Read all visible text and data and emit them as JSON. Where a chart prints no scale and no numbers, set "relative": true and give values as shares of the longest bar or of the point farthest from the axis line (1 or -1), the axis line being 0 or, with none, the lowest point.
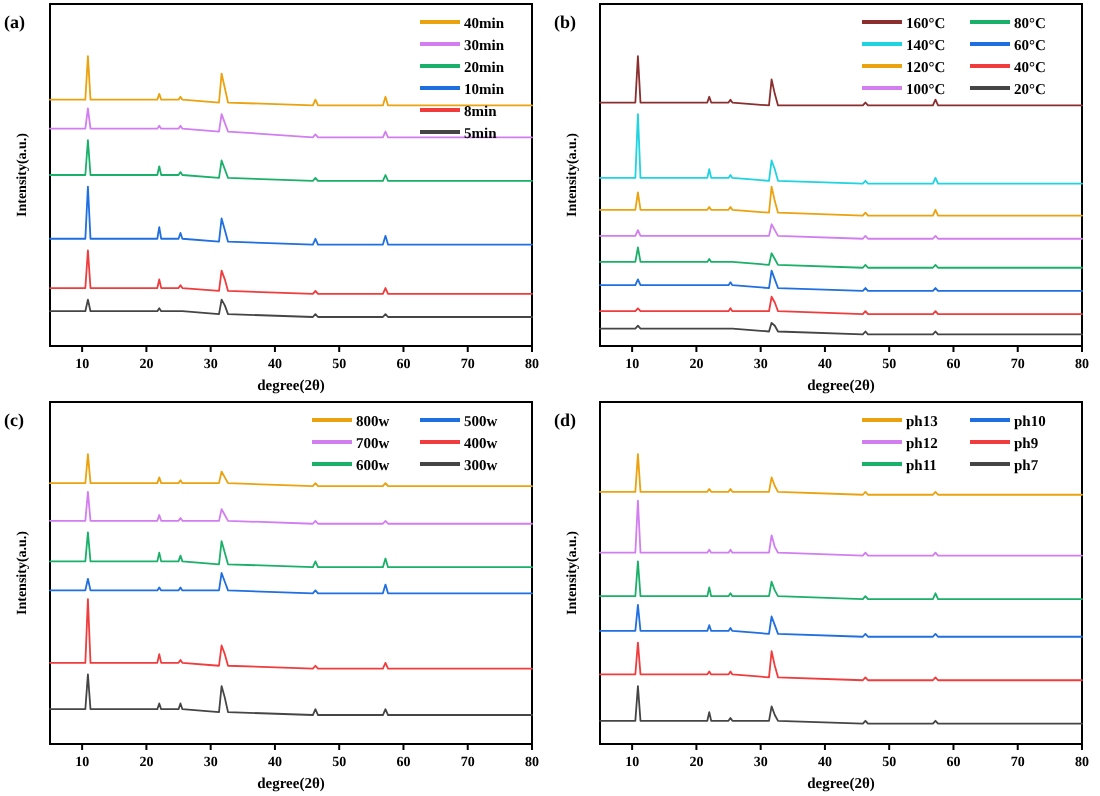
{
  "chart_data": [
    {
      "type": "line",
      "relative": true,
      "title": "(a)",
      "xlabel": "degree(2θ)",
      "ylabel": "Intensity(a.u.)",
      "legend": "top right",
      "xlim": [
        5,
        80
      ],
      "xticks": [
        10,
        20,
        30,
        40,
        50,
        60,
        70,
        80
      ],
      "x": [
        5,
        10.5,
        10.9,
        11.3,
        21.7,
        22,
        22.3,
        25,
        25.3,
        25.6,
        31.3,
        31.7,
        32.2,
        32.7,
        45.9,
        46.3,
        46.7,
        56.8,
        57.2,
        57.6,
        80
      ],
      "series": [
        {
          "name": "40min",
          "color": "#eba20f",
          "values": [
            0.85,
            0.85,
            1.0,
            0.85,
            0.85,
            0.87,
            0.85,
            0.85,
            0.86,
            0.85,
            0.84,
            0.94,
            0.89,
            0.84,
            0.83,
            0.85,
            0.83,
            0.83,
            0.86,
            0.83,
            0.83
          ]
        },
        {
          "name": "30min",
          "color": "#d27ef0",
          "values": [
            0.75,
            0.75,
            0.82,
            0.75,
            0.75,
            0.76,
            0.75,
            0.75,
            0.76,
            0.75,
            0.74,
            0.8,
            0.77,
            0.74,
            0.72,
            0.73,
            0.72,
            0.72,
            0.74,
            0.72,
            0.72
          ]
        },
        {
          "name": "20min",
          "color": "#1bb06a",
          "values": [
            0.59,
            0.59,
            0.71,
            0.59,
            0.59,
            0.62,
            0.59,
            0.59,
            0.6,
            0.59,
            0.58,
            0.64,
            0.61,
            0.58,
            0.57,
            0.58,
            0.57,
            0.57,
            0.59,
            0.57,
            0.57
          ]
        },
        {
          "name": "10min",
          "color": "#1f6fe0",
          "values": [
            0.37,
            0.37,
            0.55,
            0.37,
            0.37,
            0.41,
            0.37,
            0.37,
            0.39,
            0.37,
            0.36,
            0.44,
            0.4,
            0.36,
            0.35,
            0.37,
            0.35,
            0.35,
            0.38,
            0.35,
            0.35
          ]
        },
        {
          "name": "8min",
          "color": "#f03c3c",
          "values": [
            0.2,
            0.2,
            0.33,
            0.2,
            0.2,
            0.23,
            0.2,
            0.2,
            0.21,
            0.2,
            0.19,
            0.26,
            0.23,
            0.19,
            0.18,
            0.19,
            0.18,
            0.18,
            0.2,
            0.18,
            0.18
          ]
        },
        {
          "name": "5min",
          "color": "#454545",
          "values": [
            0.12,
            0.12,
            0.16,
            0.12,
            0.12,
            0.13,
            0.12,
            0.12,
            0.12,
            0.12,
            0.11,
            0.16,
            0.14,
            0.11,
            0.1,
            0.11,
            0.1,
            0.1,
            0.11,
            0.1,
            0.1
          ]
        }
      ]
    },
    {
      "type": "line",
      "relative": true,
      "title": "(b)",
      "xlabel": "degree(2θ)",
      "ylabel": "Intensity(a.u.)",
      "legend": "top right",
      "xlim": [
        5,
        80
      ],
      "xticks": [
        10,
        20,
        30,
        40,
        50,
        60,
        70,
        80
      ],
      "x": [
        5,
        10.5,
        10.9,
        11.3,
        21.7,
        22,
        22.3,
        25,
        25.3,
        25.6,
        31.3,
        31.7,
        32.2,
        32.7,
        45.9,
        46.3,
        46.7,
        56.8,
        57.2,
        57.6,
        80
      ],
      "series": [
        {
          "name": "160°C",
          "color": "#8b2e2e",
          "values": [
            0.84,
            0.84,
            1.0,
            0.84,
            0.84,
            0.86,
            0.84,
            0.84,
            0.85,
            0.84,
            0.83,
            0.92,
            0.87,
            0.83,
            0.83,
            0.84,
            0.83,
            0.83,
            0.85,
            0.83,
            0.83
          ]
        },
        {
          "name": "140°C",
          "color": "#1fd3e0",
          "values": [
            0.58,
            0.58,
            0.8,
            0.58,
            0.58,
            0.61,
            0.58,
            0.58,
            0.59,
            0.58,
            0.57,
            0.64,
            0.61,
            0.57,
            0.56,
            0.57,
            0.56,
            0.56,
            0.58,
            0.56,
            0.56
          ]
        },
        {
          "name": "120°C",
          "color": "#eba20f",
          "values": [
            0.47,
            0.47,
            0.53,
            0.47,
            0.47,
            0.48,
            0.47,
            0.47,
            0.48,
            0.47,
            0.46,
            0.55,
            0.5,
            0.46,
            0.45,
            0.46,
            0.45,
            0.45,
            0.47,
            0.45,
            0.45
          ]
        },
        {
          "name": "100°C",
          "color": "#d27ef0",
          "values": [
            0.38,
            0.38,
            0.4,
            0.38,
            0.38,
            0.38,
            0.38,
            0.38,
            0.38,
            0.38,
            0.38,
            0.42,
            0.4,
            0.38,
            0.37,
            0.38,
            0.37,
            0.37,
            0.38,
            0.37,
            0.37
          ]
        },
        {
          "name": "80°C",
          "color": "#1bb06a",
          "values": [
            0.29,
            0.29,
            0.34,
            0.29,
            0.29,
            0.3,
            0.29,
            0.29,
            0.29,
            0.29,
            0.28,
            0.32,
            0.3,
            0.28,
            0.27,
            0.28,
            0.27,
            0.27,
            0.28,
            0.27,
            0.27
          ]
        },
        {
          "name": "60°C",
          "color": "#1f6fe0",
          "values": [
            0.21,
            0.21,
            0.23,
            0.21,
            0.21,
            0.21,
            0.21,
            0.21,
            0.22,
            0.21,
            0.2,
            0.26,
            0.23,
            0.2,
            0.19,
            0.2,
            0.19,
            0.19,
            0.2,
            0.19,
            0.19
          ]
        },
        {
          "name": "40°C",
          "color": "#f03c3c",
          "values": [
            0.12,
            0.12,
            0.13,
            0.12,
            0.12,
            0.12,
            0.12,
            0.12,
            0.13,
            0.12,
            0.12,
            0.17,
            0.15,
            0.12,
            0.11,
            0.12,
            0.11,
            0.11,
            0.12,
            0.11,
            0.11
          ]
        },
        {
          "name": "20°C",
          "color": "#454545",
          "values": [
            0.06,
            0.06,
            0.07,
            0.06,
            0.06,
            0.06,
            0.06,
            0.06,
            0.06,
            0.06,
            0.05,
            0.08,
            0.07,
            0.05,
            0.04,
            0.05,
            0.04,
            0.04,
            0.05,
            0.04,
            0.04
          ]
        }
      ]
    },
    {
      "type": "line",
      "relative": true,
      "title": "(c)",
      "xlabel": "degree(2θ)",
      "ylabel": "Intensity(a.u.)",
      "legend": "top right",
      "xlim": [
        5,
        80
      ],
      "xticks": [
        10,
        20,
        30,
        40,
        50,
        60,
        70,
        80
      ],
      "x": [
        5,
        10.5,
        10.9,
        11.3,
        21.7,
        22,
        22.3,
        25,
        25.3,
        25.6,
        31.3,
        31.7,
        32.2,
        32.7,
        45.9,
        46.3,
        46.7,
        56.8,
        57.2,
        57.6,
        80
      ],
      "series": [
        {
          "name": "800w",
          "color": "#eba20f",
          "values": [
            0.9,
            0.9,
            1.0,
            0.9,
            0.9,
            0.92,
            0.9,
            0.9,
            0.91,
            0.9,
            0.9,
            0.94,
            0.92,
            0.9,
            0.89,
            0.9,
            0.89,
            0.89,
            0.9,
            0.89,
            0.89
          ]
        },
        {
          "name": "700w",
          "color": "#d27ef0",
          "values": [
            0.77,
            0.77,
            0.87,
            0.77,
            0.77,
            0.79,
            0.77,
            0.77,
            0.78,
            0.77,
            0.77,
            0.81,
            0.79,
            0.77,
            0.76,
            0.77,
            0.76,
            0.76,
            0.77,
            0.76,
            0.76
          ]
        },
        {
          "name": "600w",
          "color": "#1bb06a",
          "values": [
            0.63,
            0.63,
            0.73,
            0.63,
            0.63,
            0.66,
            0.63,
            0.63,
            0.65,
            0.63,
            0.62,
            0.7,
            0.66,
            0.62,
            0.61,
            0.63,
            0.61,
            0.61,
            0.64,
            0.61,
            0.61
          ]
        },
        {
          "name": "500w",
          "color": "#1f6fe0",
          "values": [
            0.53,
            0.53,
            0.57,
            0.53,
            0.53,
            0.54,
            0.53,
            0.53,
            0.54,
            0.53,
            0.53,
            0.59,
            0.56,
            0.53,
            0.52,
            0.53,
            0.52,
            0.52,
            0.55,
            0.52,
            0.52
          ]
        },
        {
          "name": "400w",
          "color": "#f03c3c",
          "values": [
            0.28,
            0.28,
            0.5,
            0.28,
            0.28,
            0.31,
            0.28,
            0.28,
            0.29,
            0.28,
            0.27,
            0.34,
            0.31,
            0.27,
            0.26,
            0.27,
            0.26,
            0.26,
            0.28,
            0.26,
            0.26
          ]
        },
        {
          "name": "300w",
          "color": "#454545",
          "values": [
            0.12,
            0.12,
            0.24,
            0.12,
            0.12,
            0.14,
            0.12,
            0.12,
            0.14,
            0.12,
            0.11,
            0.2,
            0.16,
            0.11,
            0.1,
            0.12,
            0.1,
            0.1,
            0.12,
            0.1,
            0.1
          ]
        }
      ]
    },
    {
      "type": "line",
      "relative": true,
      "title": "(d)",
      "xlabel": "degree(2θ)",
      "ylabel": "Intensity(a.u.)",
      "legend": "top right",
      "xlim": [
        5,
        80
      ],
      "xticks": [
        10,
        20,
        30,
        40,
        50,
        60,
        70,
        80
      ],
      "x": [
        5,
        10.5,
        10.9,
        11.3,
        21.7,
        22,
        22.3,
        25,
        25.3,
        25.6,
        31.3,
        31.7,
        32.2,
        32.7,
        45.9,
        46.3,
        46.7,
        56.8,
        57.2,
        57.6,
        80
      ],
      "series": [
        {
          "name": "ph13",
          "color": "#eba20f",
          "values": [
            0.87,
            0.87,
            1.0,
            0.87,
            0.87,
            0.88,
            0.87,
            0.87,
            0.88,
            0.87,
            0.87,
            0.92,
            0.89,
            0.87,
            0.86,
            0.87,
            0.86,
            0.86,
            0.87,
            0.86,
            0.86
          ]
        },
        {
          "name": "ph12",
          "color": "#d27ef0",
          "values": [
            0.66,
            0.66,
            0.84,
            0.66,
            0.66,
            0.67,
            0.66,
            0.66,
            0.67,
            0.66,
            0.66,
            0.72,
            0.68,
            0.66,
            0.65,
            0.66,
            0.65,
            0.65,
            0.66,
            0.65,
            0.65
          ]
        },
        {
          "name": "ph11",
          "color": "#1bb06a",
          "values": [
            0.51,
            0.51,
            0.63,
            0.51,
            0.51,
            0.54,
            0.51,
            0.51,
            0.52,
            0.51,
            0.51,
            0.56,
            0.53,
            0.51,
            0.5,
            0.51,
            0.5,
            0.5,
            0.52,
            0.5,
            0.5
          ]
        },
        {
          "name": "ph10",
          "color": "#1f6fe0",
          "values": [
            0.39,
            0.39,
            0.48,
            0.39,
            0.39,
            0.41,
            0.39,
            0.39,
            0.4,
            0.39,
            0.38,
            0.44,
            0.41,
            0.38,
            0.37,
            0.38,
            0.37,
            0.37,
            0.38,
            0.37,
            0.37
          ]
        },
        {
          "name": "ph9",
          "color": "#f03c3c",
          "values": [
            0.24,
            0.24,
            0.35,
            0.24,
            0.24,
            0.25,
            0.24,
            0.24,
            0.25,
            0.24,
            0.23,
            0.32,
            0.27,
            0.23,
            0.22,
            0.23,
            0.22,
            0.22,
            0.23,
            0.22,
            0.22
          ]
        },
        {
          "name": "ph7",
          "color": "#454545",
          "values": [
            0.08,
            0.08,
            0.2,
            0.08,
            0.08,
            0.11,
            0.08,
            0.08,
            0.09,
            0.08,
            0.08,
            0.13,
            0.1,
            0.08,
            0.07,
            0.08,
            0.07,
            0.07,
            0.08,
            0.07,
            0.07
          ]
        }
      ]
    }
  ]
}
